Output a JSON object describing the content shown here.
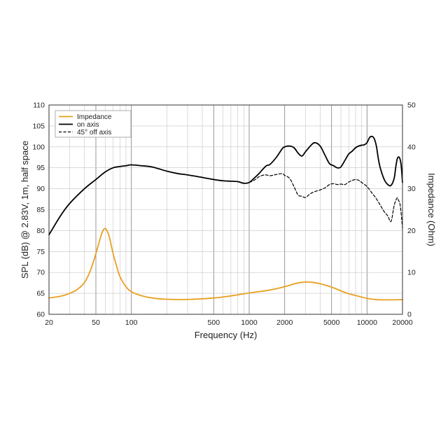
{
  "chart_data": {
    "type": "line",
    "title": "",
    "xlabel": "Frequency (Hz)",
    "ylabel": "SPL (dB) @ 2.83V, 1m, half space",
    "y2label": "Impedance (Ohm)",
    "xscale": "log",
    "xlim": [
      20,
      20000
    ],
    "ylim": [
      60,
      110
    ],
    "y2lim": [
      0,
      50
    ],
    "grid": true,
    "legend_position": "top-left",
    "x_tick_labels": [
      "20",
      "50",
      "100",
      "500",
      "1000",
      "2000",
      "5000",
      "10000",
      "20000"
    ],
    "x_tick_values": [
      20,
      50,
      100,
      500,
      1000,
      2000,
      5000,
      10000,
      20000
    ],
    "y_tick_labels": [
      "60",
      "65",
      "70",
      "75",
      "80",
      "85",
      "90",
      "95",
      "100",
      "105",
      "110"
    ],
    "y2_tick_labels": [
      "0",
      "10",
      "20",
      "30",
      "40",
      "50"
    ],
    "series": [
      {
        "name": "Impedance",
        "axis": "right",
        "color": "#E8A020",
        "dash": "solid",
        "x": [
          20,
          25,
          30,
          35,
          40,
          45,
          50,
          55,
          58,
          60,
          62,
          65,
          70,
          75,
          80,
          90,
          100,
          120,
          150,
          200,
          300,
          500,
          700,
          1000,
          1500,
          2000,
          2500,
          3000,
          3500,
          4000,
          5000,
          6000,
          7000,
          8000,
          10000,
          12000,
          15000,
          20000
        ],
        "values": [
          3.9,
          4.3,
          5.0,
          6.0,
          7.6,
          10.5,
          14.5,
          18.6,
          20.2,
          20.5,
          20.0,
          18.5,
          14.5,
          11.5,
          9.0,
          6.6,
          5.4,
          4.5,
          3.9,
          3.6,
          3.55,
          3.9,
          4.4,
          5.1,
          5.8,
          6.6,
          7.4,
          7.7,
          7.6,
          7.3,
          6.5,
          5.6,
          4.9,
          4.5,
          3.8,
          3.5,
          3.45,
          3.5
        ]
      },
      {
        "name": "on axis",
        "axis": "left",
        "color": "#000000",
        "dash": "solid",
        "x": [
          20,
          25,
          30,
          40,
          50,
          60,
          70,
          80,
          90,
          100,
          120,
          150,
          200,
          250,
          300,
          400,
          500,
          600,
          700,
          800,
          900,
          1000,
          1100,
          1200,
          1300,
          1400,
          1500,
          1700,
          1900,
          2000,
          2200,
          2400,
          2600,
          2800,
          3000,
          3300,
          3600,
          4000,
          4400,
          4800,
          5200,
          5600,
          6000,
          6500,
          7000,
          7500,
          8000,
          8500,
          9000,
          9500,
          10000,
          10500,
          11000,
          11500,
          12000,
          12500,
          13000,
          14000,
          15000,
          16000,
          17000,
          17500,
          18000,
          18500,
          19000,
          19500,
          20000
        ],
        "values": [
          79.0,
          83.5,
          86.5,
          90.0,
          92.2,
          94.0,
          95.0,
          95.3,
          95.5,
          95.7,
          95.5,
          95.2,
          94.2,
          93.6,
          93.3,
          92.7,
          92.2,
          91.9,
          91.8,
          91.7,
          91.3,
          91.5,
          92.5,
          93.5,
          94.6,
          95.5,
          95.8,
          97.5,
          99.5,
          100.0,
          100.2,
          99.8,
          98.5,
          97.8,
          98.8,
          100.2,
          101.0,
          100.2,
          98.0,
          96.0,
          95.5,
          95.0,
          95.2,
          96.8,
          98.3,
          99.0,
          99.8,
          100.2,
          100.4,
          100.5,
          101.0,
          102.2,
          102.5,
          102.0,
          100.2,
          97.0,
          94.8,
          92.2,
          91.0,
          90.8,
          92.5,
          95.0,
          97.0,
          97.6,
          97.2,
          95.5,
          91.5
        ]
      },
      {
        "name": "45° off axis",
        "axis": "left",
        "color": "#000000",
        "dash": "dashed",
        "x": [
          1000,
          1100,
          1200,
          1300,
          1400,
          1500,
          1700,
          1900,
          2000,
          2200,
          2400,
          2600,
          2800,
          3000,
          3300,
          3600,
          4000,
          4400,
          4800,
          5200,
          5600,
          6000,
          6500,
          7000,
          7500,
          8000,
          8500,
          9000,
          10000,
          11000,
          12000,
          13000,
          14000,
          15000,
          16000,
          17000,
          18000,
          18500,
          19000,
          19500,
          20000
        ],
        "values": [
          91.5,
          92.0,
          92.8,
          93.2,
          93.3,
          93.1,
          93.4,
          93.6,
          93.2,
          92.5,
          90.5,
          88.5,
          88.2,
          87.9,
          88.8,
          89.3,
          89.7,
          90.2,
          91.0,
          91.2,
          91.0,
          91.1,
          91.0,
          91.6,
          92.0,
          92.2,
          92.0,
          91.5,
          90.5,
          89.0,
          87.6,
          86.0,
          84.5,
          83.5,
          82.2,
          86.0,
          87.8,
          87.2,
          86.5,
          84.0,
          80.5
        ]
      }
    ]
  }
}
